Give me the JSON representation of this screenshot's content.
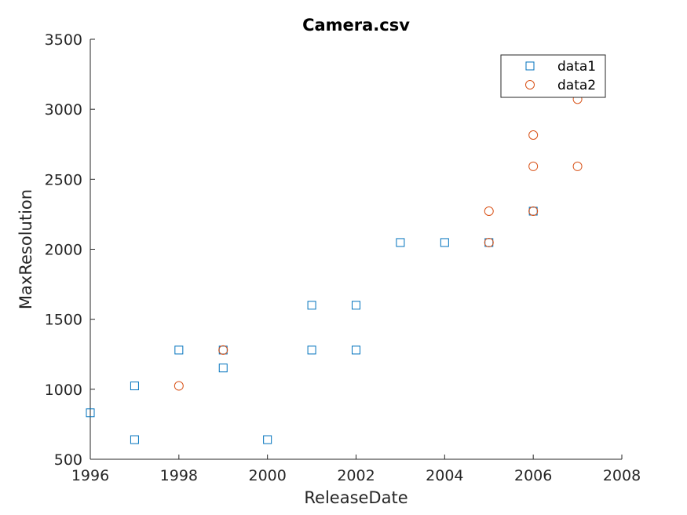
{
  "chart_data": {
    "type": "scatter",
    "title": "Camera.csv",
    "xlabel": "ReleaseDate",
    "ylabel": "MaxResolution",
    "xlim": [
      1996,
      2008
    ],
    "ylim": [
      500,
      3500
    ],
    "xticks": [
      1996,
      1998,
      2000,
      2002,
      2004,
      2006,
      2008
    ],
    "yticks": [
      500,
      1000,
      1500,
      2000,
      2500,
      3000,
      3500
    ],
    "grid": false,
    "legend_position": "top-right",
    "series": [
      {
        "name": "data1",
        "marker": "square",
        "color": "#0072BD",
        "points": [
          [
            1996,
            832
          ],
          [
            1997,
            640
          ],
          [
            1997,
            1024
          ],
          [
            1998,
            1280
          ],
          [
            1999,
            1152
          ],
          [
            1999,
            1280
          ],
          [
            2000,
            640
          ],
          [
            2001,
            1280
          ],
          [
            2001,
            1600
          ],
          [
            2002,
            1280
          ],
          [
            2002,
            1600
          ],
          [
            2003,
            2048
          ],
          [
            2004,
            2048
          ],
          [
            2005,
            2048
          ],
          [
            2006,
            2272
          ]
        ]
      },
      {
        "name": "data2",
        "marker": "circle",
        "color": "#D95319",
        "points": [
          [
            1998,
            1024
          ],
          [
            1999,
            1280
          ],
          [
            2005,
            2048
          ],
          [
            2005,
            2272
          ],
          [
            2006,
            2272
          ],
          [
            2006,
            2592
          ],
          [
            2006,
            2816
          ],
          [
            2007,
            2592
          ],
          [
            2007,
            3072
          ]
        ]
      }
    ]
  }
}
